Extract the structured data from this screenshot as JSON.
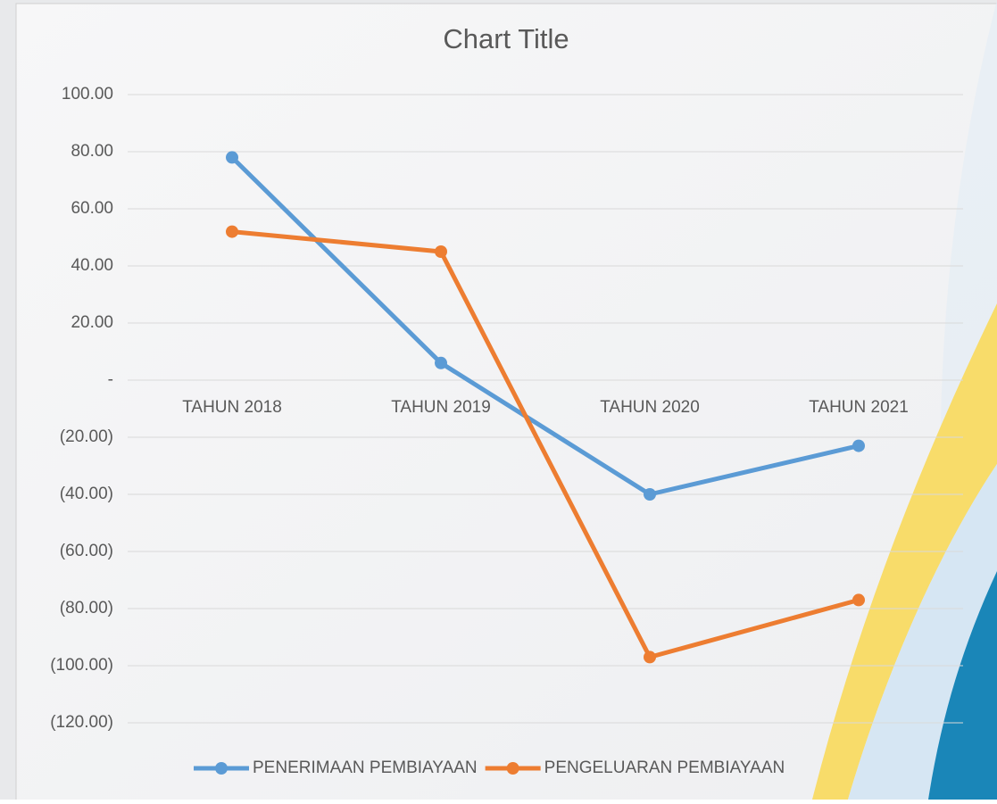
{
  "chart_data": {
    "type": "line",
    "title": "Chart Title",
    "categories": [
      "TAHUN 2018",
      "TAHUN 2019",
      "TAHUN 2020",
      "TAHUN 2021"
    ],
    "series": [
      {
        "name": "PENERIMAAN PEMBIAYAAN",
        "color": "#5b9bd5",
        "values": [
          78,
          6,
          -40,
          -23
        ]
      },
      {
        "name": "PENGELUARAN PEMBIAYAAN",
        "color": "#ed7d31",
        "values": [
          52,
          45,
          -97,
          -77
        ]
      }
    ],
    "ylim": [
      -120,
      100
    ],
    "yticks": [
      {
        "value": 100,
        "label": "100.00"
      },
      {
        "value": 80,
        "label": "80.00"
      },
      {
        "value": 60,
        "label": "60.00"
      },
      {
        "value": 40,
        "label": "40.00"
      },
      {
        "value": 20,
        "label": "20.00"
      },
      {
        "value": 0,
        "label": "-"
      },
      {
        "value": -20,
        "label": "(20.00)"
      },
      {
        "value": -40,
        "label": "(40.00)"
      },
      {
        "value": -60,
        "label": "(60.00)"
      },
      {
        "value": -80,
        "label": "(80.00)"
      },
      {
        "value": -100,
        "label": "(100.00)"
      },
      {
        "value": -120,
        "label": "(120.00)"
      }
    ],
    "grid": true,
    "legend": "bottom"
  }
}
